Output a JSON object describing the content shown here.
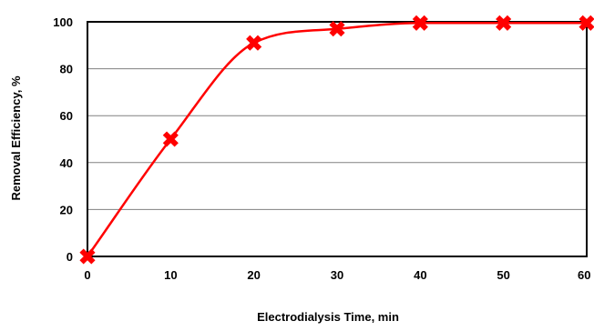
{
  "chart_data": {
    "type": "line",
    "title": "",
    "xlabel": "Electrodialysis Time, min",
    "ylabel": "Removal Efficiency, %",
    "xlim": [
      0,
      60
    ],
    "ylim": [
      0,
      100
    ],
    "x_ticks": [
      0,
      10,
      20,
      30,
      40,
      50,
      60
    ],
    "y_ticks": [
      0,
      20,
      40,
      60,
      80,
      100
    ],
    "x_tick_labels": [
      "0",
      "10",
      "20",
      "30",
      "40",
      "50",
      "60"
    ],
    "y_tick_labels": [
      "0",
      "20",
      "40",
      "60",
      "80",
      "100"
    ],
    "grid": "horizontal",
    "legend": "none",
    "series": [
      {
        "color": "#ff0000",
        "marker": "x-filled",
        "smooth": true,
        "x": [
          0,
          10,
          20,
          30,
          40,
          50,
          60
        ],
        "y": [
          0,
          50,
          91,
          97,
          99.5,
          99.5,
          99.5
        ]
      }
    ]
  }
}
